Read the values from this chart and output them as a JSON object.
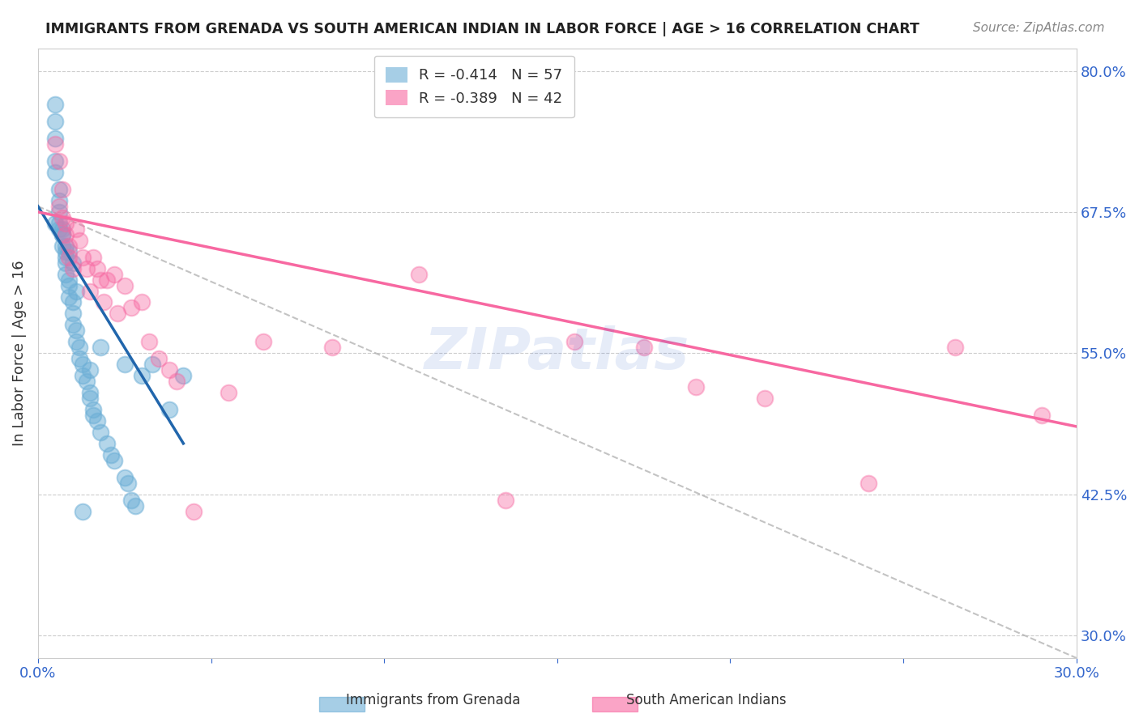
{
  "title": "IMMIGRANTS FROM GRENADA VS SOUTH AMERICAN INDIAN IN LABOR FORCE | AGE > 16 CORRELATION CHART",
  "source": "Source: ZipAtlas.com",
  "ylabel": "In Labor Force | Age > 16",
  "xlabel": "",
  "ytick_labels": [
    "30.0%",
    "42.5%",
    "55.0%",
    "67.5%",
    "80.0%"
  ],
  "ytick_values": [
    0.3,
    0.425,
    0.55,
    0.675,
    0.8
  ],
  "xtick_labels": [
    "0.0%",
    "",
    "",
    "",
    "",
    "",
    "30.0%"
  ],
  "xlim": [
    0.0,
    0.3
  ],
  "ylim": [
    0.28,
    0.82
  ],
  "legend_r1": "R = -0.414",
  "legend_n1": "N = 57",
  "legend_r2": "R = -0.389",
  "legend_n2": "N = 42",
  "blue_color": "#6baed6",
  "pink_color": "#f768a1",
  "blue_line_color": "#2166ac",
  "pink_line_color": "#f768a1",
  "watermark": "ZIPatlas",
  "blue_scatter_x": [
    0.005,
    0.005,
    0.005,
    0.005,
    0.005,
    0.006,
    0.006,
    0.006,
    0.006,
    0.007,
    0.007,
    0.007,
    0.008,
    0.008,
    0.008,
    0.008,
    0.009,
    0.009,
    0.009,
    0.01,
    0.01,
    0.01,
    0.011,
    0.011,
    0.012,
    0.012,
    0.013,
    0.013,
    0.014,
    0.015,
    0.015,
    0.016,
    0.016,
    0.017,
    0.018,
    0.02,
    0.021,
    0.022,
    0.025,
    0.026,
    0.027,
    0.028,
    0.03,
    0.033,
    0.038,
    0.042,
    0.005,
    0.006,
    0.007,
    0.008,
    0.009,
    0.01,
    0.011,
    0.013,
    0.015,
    0.018,
    0.025
  ],
  "blue_scatter_y": [
    0.77,
    0.755,
    0.74,
    0.72,
    0.71,
    0.695,
    0.685,
    0.675,
    0.665,
    0.66,
    0.655,
    0.645,
    0.64,
    0.635,
    0.63,
    0.62,
    0.615,
    0.61,
    0.6,
    0.595,
    0.585,
    0.575,
    0.57,
    0.56,
    0.555,
    0.545,
    0.54,
    0.53,
    0.525,
    0.515,
    0.51,
    0.5,
    0.495,
    0.49,
    0.48,
    0.47,
    0.46,
    0.455,
    0.44,
    0.435,
    0.42,
    0.415,
    0.53,
    0.54,
    0.5,
    0.53,
    0.665,
    0.66,
    0.655,
    0.645,
    0.64,
    0.63,
    0.605,
    0.41,
    0.535,
    0.555,
    0.54
  ],
  "pink_scatter_x": [
    0.005,
    0.006,
    0.006,
    0.007,
    0.007,
    0.008,
    0.008,
    0.009,
    0.009,
    0.01,
    0.011,
    0.012,
    0.013,
    0.014,
    0.015,
    0.016,
    0.017,
    0.018,
    0.019,
    0.02,
    0.022,
    0.023,
    0.025,
    0.027,
    0.03,
    0.032,
    0.035,
    0.038,
    0.04,
    0.045,
    0.055,
    0.065,
    0.085,
    0.11,
    0.135,
    0.155,
    0.175,
    0.19,
    0.21,
    0.24,
    0.265,
    0.29
  ],
  "pink_scatter_y": [
    0.735,
    0.72,
    0.68,
    0.695,
    0.67,
    0.665,
    0.655,
    0.645,
    0.635,
    0.625,
    0.66,
    0.65,
    0.635,
    0.625,
    0.605,
    0.635,
    0.625,
    0.615,
    0.595,
    0.615,
    0.62,
    0.585,
    0.61,
    0.59,
    0.595,
    0.56,
    0.545,
    0.535,
    0.525,
    0.41,
    0.515,
    0.56,
    0.555,
    0.62,
    0.42,
    0.56,
    0.555,
    0.52,
    0.51,
    0.435,
    0.555,
    0.495
  ],
  "blue_line_x": [
    0.0,
    0.042
  ],
  "blue_line_y": [
    0.68,
    0.47
  ],
  "pink_line_x": [
    0.0,
    0.3
  ],
  "pink_line_y": [
    0.675,
    0.485
  ],
  "dashed_line_x": [
    0.0,
    0.3
  ],
  "dashed_line_y": [
    0.68,
    0.28
  ]
}
